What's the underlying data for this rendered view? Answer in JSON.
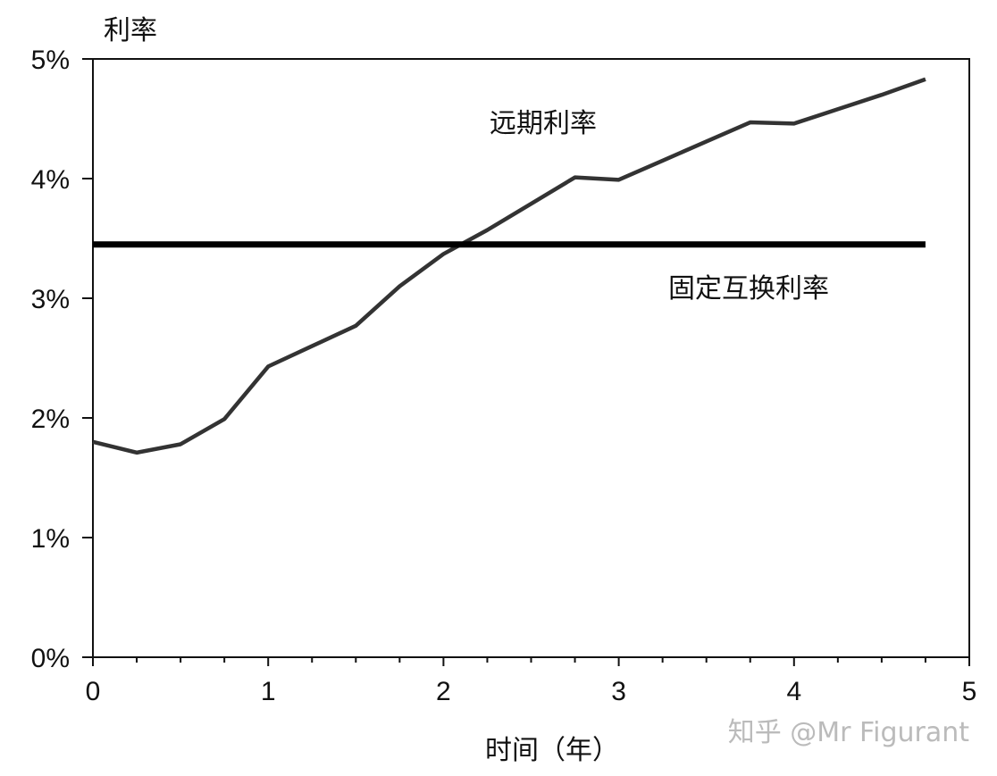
{
  "chart_data": {
    "type": "line",
    "ylabel": "利率",
    "xlabel": "时间（年）",
    "xlim": [
      0,
      5
    ],
    "ylim": [
      0,
      5
    ],
    "x_ticks": [
      "0",
      "1",
      "2",
      "3",
      "4",
      "5"
    ],
    "y_ticks": [
      "0%",
      "1%",
      "2%",
      "3%",
      "4%",
      "5%"
    ],
    "grid": false,
    "series": [
      {
        "name": "远期利率",
        "x": [
          0,
          0.25,
          0.5,
          0.75,
          1,
          1.25,
          1.5,
          1.75,
          2,
          2.25,
          2.5,
          2.75,
          3,
          3.25,
          3.5,
          3.75,
          4,
          4.25,
          4.5,
          4.75
        ],
        "y": [
          1.8,
          1.71,
          1.78,
          1.99,
          2.43,
          2.6,
          2.77,
          3.1,
          3.37,
          3.57,
          3.79,
          4.01,
          3.99,
          4.15,
          4.31,
          4.47,
          4.46,
          4.58,
          4.7,
          4.83
        ],
        "color": "#333333"
      },
      {
        "name": "固定互换利率",
        "x": [
          0,
          4.75
        ],
        "y": [
          3.45,
          3.45
        ],
        "color": "#000000"
      }
    ]
  },
  "watermark": "知乎 @Mr Figurant"
}
